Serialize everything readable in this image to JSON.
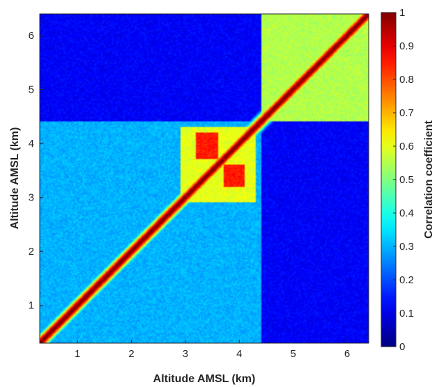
{
  "chart_data": {
    "type": "heatmap",
    "title": "",
    "xlabel": "Altitude AMSL (km)",
    "ylabel": "Altitude AMSL (km)",
    "xlim": [
      0.3,
      6.4
    ],
    "ylim": [
      0.3,
      6.4
    ],
    "xticks": [
      "1",
      "2",
      "3",
      "4",
      "5",
      "6"
    ],
    "yticks": [
      "1",
      "2",
      "3",
      "4",
      "5",
      "6"
    ],
    "colorbar": {
      "label": "Correlation coefficient",
      "colormap": "jet",
      "range": [
        0,
        1
      ],
      "ticks": [
        "0",
        "0.1",
        "0.2",
        "0.3",
        "0.4",
        "0.5",
        "0.6",
        "0.7",
        "0.8",
        "0.9",
        "1"
      ]
    },
    "grid": false,
    "diagonal_value": 1,
    "regions": [
      {
        "x": [
          0.3,
          4.4
        ],
        "y": [
          4.4,
          6.4
        ],
        "value": 0.12
      },
      {
        "x": [
          4.4,
          6.4
        ],
        "y": [
          0.3,
          4.4
        ],
        "value": 0.12
      },
      {
        "x": [
          4.4,
          6.4
        ],
        "y": [
          4.4,
          6.4
        ],
        "value": 0.55
      },
      {
        "x": [
          0.3,
          4.4
        ],
        "y": [
          0.3,
          4.4
        ],
        "value": 0.3
      },
      {
        "x": [
          2.9,
          4.3
        ],
        "y": [
          2.9,
          4.3
        ],
        "value": 0.6
      },
      {
        "x": [
          3.2,
          3.6
        ],
        "y": [
          3.7,
          4.2
        ],
        "value": 0.85
      },
      {
        "x": [
          3.7,
          4.1
        ],
        "y": [
          3.2,
          3.6
        ],
        "value": 0.85
      }
    ]
  }
}
